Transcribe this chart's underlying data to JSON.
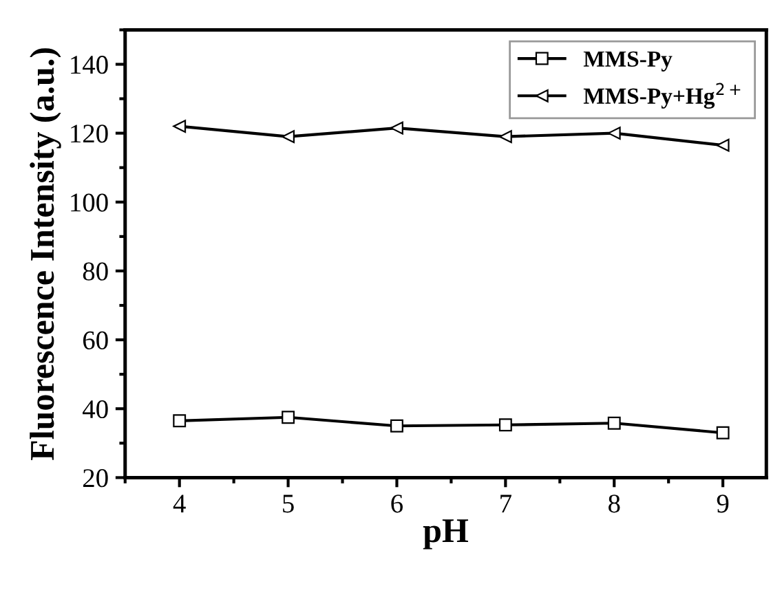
{
  "chart_data": {
    "type": "line",
    "xlabel": "pH",
    "ylabel": "Fluorescence Intensity (a.u.)",
    "x": [
      4,
      5,
      6,
      7,
      8,
      9
    ],
    "series": [
      {
        "name": "MMS-Py",
        "color": "#000000",
        "marker": "square",
        "values": [
          36.5,
          37.5,
          35,
          35.3,
          35.8,
          33
        ]
      },
      {
        "name": "MMS-Py+Hg$^{2+}$",
        "color": "#000000",
        "marker": "triangle",
        "values": [
          122,
          119,
          121.5,
          119,
          120,
          116.5
        ]
      }
    ],
    "xlim": [
      3.5,
      9.4
    ],
    "ylim": [
      20,
      150
    ],
    "xticks": [
      4,
      5,
      6,
      7,
      8,
      9
    ],
    "yticks": [
      20,
      40,
      60,
      80,
      100,
      120,
      140
    ],
    "grid": false,
    "legend": "top right",
    "line_style": "solid"
  }
}
